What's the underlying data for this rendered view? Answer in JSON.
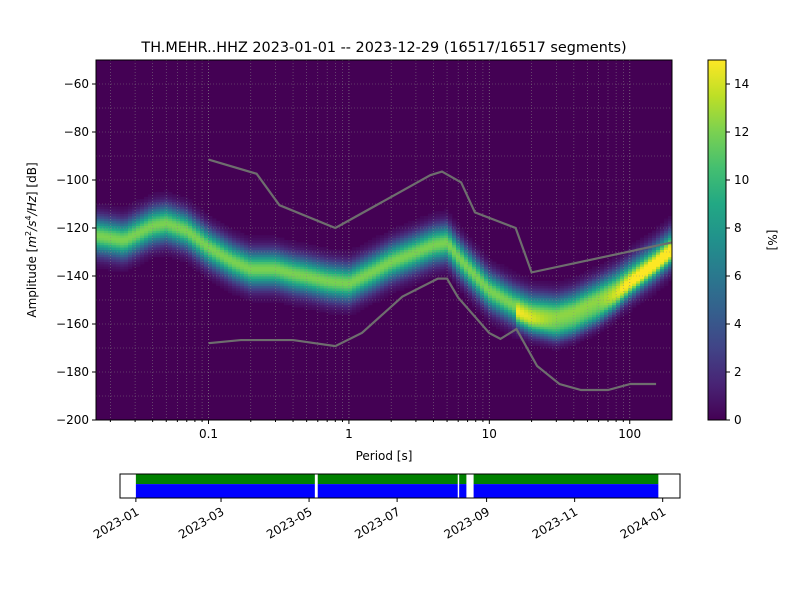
{
  "chart_data": [
    {
      "type": "heatmap",
      "title": "TH.MEHR..HHZ   2023-01-01 -- 2023-12-29  (16517/16517 segments)",
      "xlabel": "Period [s]",
      "ylabel": "Amplitude [m²/s⁴/Hz] [dB]",
      "ylabel_parts": {
        "base": "Amplitude [",
        "unit_m": "m",
        "sup2": "2",
        "slash_s": "/s",
        "sup4": "4",
        "slash_hz": "/Hz",
        "tail": "] [dB]"
      },
      "x_scale": "log",
      "xlim": [
        0.0158,
        200
      ],
      "ylim": [
        -200,
        -50
      ],
      "x_ticks": [
        0.1,
        1,
        10,
        100
      ],
      "x_tick_labels": [
        "0.1",
        "1",
        "10",
        "100"
      ],
      "y_ticks": [
        -60,
        -80,
        -100,
        -120,
        -140,
        -160,
        -180,
        -200
      ],
      "y_tick_labels": [
        "−60",
        "−80",
        "−100",
        "−120",
        "−140",
        "−160",
        "−180",
        "−200"
      ],
      "grid": true,
      "colormap": "viridis",
      "colorbar": {
        "label": "[%]",
        "range": [
          0,
          15
        ],
        "ticks": [
          0,
          2,
          4,
          6,
          8,
          10,
          12,
          14
        ],
        "tick_labels": [
          "0",
          "2",
          "4",
          "6",
          "8",
          "10",
          "12",
          "14"
        ]
      },
      "psd_modes": [
        {
          "period": [
            0.0158,
            0.025,
            0.04,
            0.05,
            0.07,
            0.1,
            0.15,
            0.2,
            0.3,
            0.4,
            0.5,
            0.7,
            1.0,
            1.5,
            2.0,
            3.0,
            4.0,
            5.0,
            6.0,
            8.0,
            10,
            15,
            20,
            30,
            40,
            60,
            80,
            100,
            150,
            200
          ],
          "db": [
            -123,
            -125,
            -119,
            -118,
            -121,
            -128,
            -134,
            -137,
            -137,
            -139,
            -140,
            -142,
            -143,
            -138,
            -134,
            -130,
            -127,
            -126,
            -132,
            -140,
            -146,
            -152,
            -155,
            -156,
            -154,
            -149,
            -145,
            -141,
            -134,
            -128
          ],
          "width": 5,
          "peak_pct": 12
        },
        {
          "period": [
            15,
            20,
            30,
            40,
            60,
            80,
            100,
            150,
            200
          ],
          "db": [
            -156,
            -160,
            -163,
            -161,
            -156,
            -150,
            -144,
            -136,
            -130
          ],
          "width": 3,
          "peak_pct": 5
        }
      ],
      "nhnm": {
        "period": [
          0.1,
          0.22,
          0.32,
          0.8,
          3.8,
          4.6,
          6.3,
          7.9,
          15.4,
          20,
          354.8
        ],
        "db": [
          -91.5,
          -97.4,
          -110.5,
          -120,
          -98,
          -96.5,
          -101,
          -113.5,
          -120,
          -138.5,
          -126
        ]
      },
      "nlnm": {
        "period": [
          0.1,
          0.17,
          0.4,
          0.8,
          1.24,
          2.4,
          4.3,
          5.0,
          6.0,
          10,
          12,
          15.6,
          21.9,
          31.6,
          45,
          70,
          101,
          154
        ],
        "db": [
          -168,
          -166.7,
          -166.7,
          -169.2,
          -163.7,
          -148.6,
          -141.1,
          -141.1,
          -149.0,
          -163.8,
          -166.2,
          -162.1,
          -177.5,
          -185,
          -187.5,
          -187.5,
          -185,
          -185
        ]
      }
    },
    {
      "type": "timeline",
      "x_range": [
        "2022-12-21",
        "2024-01-13"
      ],
      "x_ticks": [
        "2023-01",
        "2023-03",
        "2023-05",
        "2023-07",
        "2023-09",
        "2023-11",
        "2024-01"
      ],
      "x_tick_labels": [
        "2023-01",
        "2023-03",
        "2023-05",
        "2023-07",
        "2023-09",
        "2023-11",
        "2024-01"
      ],
      "data_segments": [
        {
          "start": "2023-01-01",
          "end": "2023-05-05"
        },
        {
          "start": "2023-05-07",
          "end": "2023-08-12"
        },
        {
          "start": "2023-08-13",
          "end": "2023-08-18"
        },
        {
          "start": "2023-08-23",
          "end": "2023-12-29"
        }
      ],
      "colors": {
        "top": "#008000",
        "bottom": "#0000ff"
      }
    }
  ]
}
